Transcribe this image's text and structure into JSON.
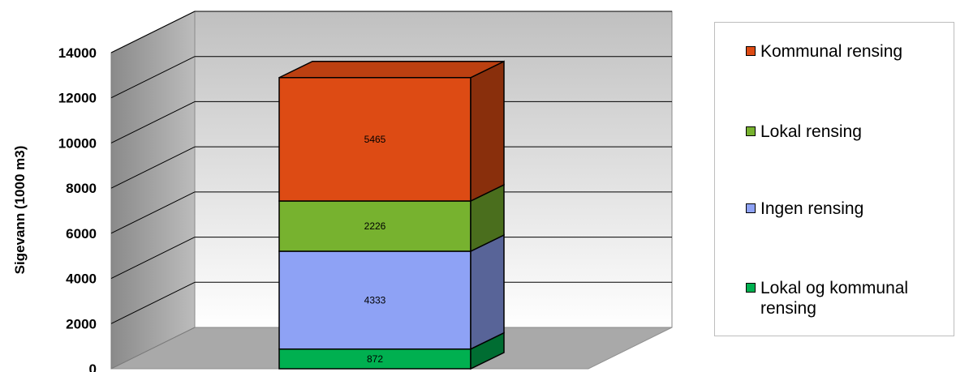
{
  "chart_data": {
    "type": "bar",
    "stacked": true,
    "three_d": true,
    "categories": [
      ""
    ],
    "ylabel": "Sigevann (1000 m3)",
    "ylim": [
      0,
      14000
    ],
    "yticks": [
      0,
      2000,
      4000,
      6000,
      8000,
      10000,
      12000,
      14000
    ],
    "grid": true,
    "legend_position": "right",
    "series": [
      {
        "name": "Lokal og kommunal rensing",
        "values": [
          872
        ],
        "color": "#00b050"
      },
      {
        "name": "Ingen rensing",
        "values": [
          4333
        ],
        "color": "#8ea2f5"
      },
      {
        "name": "Lokal rensing",
        "values": [
          2226
        ],
        "color": "#77b22f"
      },
      {
        "name": "Kommunal rensing",
        "values": [
          5465
        ],
        "color": "#dd4b14"
      }
    ]
  },
  "legend": {
    "items": [
      {
        "label": "Kommunal rensing",
        "color": "#dd4b14"
      },
      {
        "label": "Lokal rensing",
        "color": "#77b22f"
      },
      {
        "label": "Ingen rensing",
        "color": "#8ea2f5"
      },
      {
        "label": "Lokal og kommunal rensing",
        "color": "#00b050"
      }
    ]
  }
}
